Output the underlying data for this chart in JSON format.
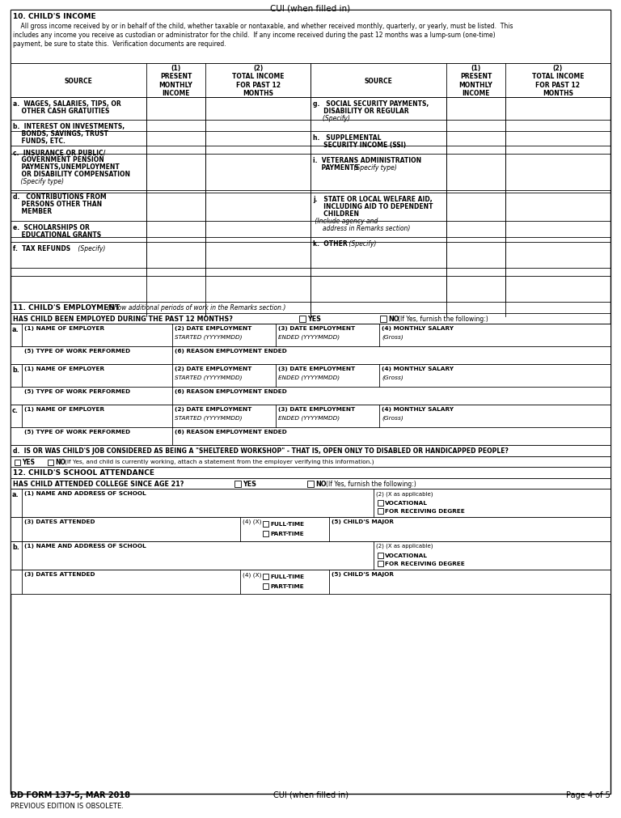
{
  "page_title": "CUI (when filled in)",
  "footer_form": "DD FORM 137-5, MAR 2018",
  "footer_center": "CUI (when filled in)",
  "footer_page": "Page 4 of 5",
  "footer_obsolete": "PREVIOUS EDITION IS OBSOLETE.",
  "background": "#ffffff",
  "section10_title": "10. CHILD’S INCOME",
  "section10_title_plain": "10. CHILD'S INCOME",
  "section10_desc1": "    All gross income received by or in behalf of the child, whether taxable or nontaxable, and whether received monthly, quarterly, or yearly, must be listed.  This",
  "section10_desc2": "includes any income you receive as custodian or administrator for the child.  If any income received during the past 12 months was a lump-sum (one-time)",
  "section10_desc3": "payment, be sure to state this.  Verification documents are required.",
  "income_rows_left": [
    {
      "bold": "a.  WAGES, SALARIES, TIPS, OR\n    OTHER CASH GRATUITIES",
      "italic": ""
    },
    {
      "bold": "b.  INTEREST ON INVESTMENTS,\n    BONDS, SAVINGS, TRUST\n    FUNDS, ETC.",
      "italic": ""
    },
    {
      "bold": "c.  INSURANCE OR PUBLIC/\n    GOVERNMENT PENSION\n    PAYMENTS,UNEMPLOYMENT\n    OR DISABILITY COMPENSATION",
      "italic": "    (Specify type)"
    },
    {
      "bold": "d.   CONTRIBUTIONS FROM\n    PERSONS OTHER THAN\n    MEMBER",
      "italic": ""
    },
    {
      "bold": "e.  SCHOLARSHIPS OR\n    EDUCATIONAL GRANTS",
      "italic": ""
    },
    {
      "bold": "f.  TAX REFUNDS",
      "italic": " (Specify)"
    }
  ],
  "income_rows_right": [
    {
      "bold": "g.   SOCIAL SECURITY PAYMENTS,\n     DISABILITY OR REGULAR",
      "italic": "     (Specify)"
    },
    {
      "bold": "h.   SUPPLEMENTAL\n     SECURITY INCOME (SSI)",
      "italic": ""
    },
    {
      "bold": "i.  VETERANS ADMINISTRATION\n    PAYMENTS",
      "italic": " (Specify type)"
    },
    {
      "bold": "j.   STATE OR LOCAL WELFARE AID,\n     INCLUDING AID TO DEPENDENT\n     CHILDREN",
      "italic": " (Include agency and\n     address in Remarks section)"
    },
    {
      "bold": "k.  OTHER",
      "italic": " (Specify)"
    },
    {
      "bold": "",
      "italic": ""
    }
  ],
  "section11_title": "11. CHILD'S EMPLOYMENT",
  "section11_italic": "  (Show additional periods of work in the Remarks section.)",
  "employment_q": "HAS CHILD BEEN EMPLOYED DURING THE PAST 12 MONTHS?",
  "employment_yes": "YES",
  "employment_no": "NO",
  "employment_no_note": "(If Yes, furnish the following:)",
  "emp_col1": "(1) NAME OF EMPLOYER",
  "emp_col2_bold": "(2) DATE EMPLOYMENT",
  "emp_col2_italic": "STARTED (YYYYMMDD)",
  "emp_col3_bold": "(3) DATE EMPLOYMENT",
  "emp_col3_italic": "ENDED (YYYYMMDD)",
  "emp_col4_bold": "(4) MONTHLY SALARY",
  "emp_col4_italic": "(Gross)",
  "emp_col5": "(5) TYPE OF WORK PERFORMED",
  "emp_col6": "(6) REASON EMPLOYMENT ENDED",
  "emp_labels": [
    "a.",
    "b.",
    "c."
  ],
  "sheltered_q": "d.  IS OR WAS CHILD'S JOB CONSIDERED AS BEING A \"SHELTERED WORKSHOP\" - THAT IS, OPEN ONLY TO DISABLED OR HANDICAPPED PEOPLE?",
  "sheltered_yes": "YES",
  "sheltered_no": "NO",
  "sheltered_note": "(If Yes, and child is currently working, attach a statement from the employer verifying this information.)",
  "section12_title": "12. CHILD'S SCHOOL ATTENDANCE",
  "school_q": "HAS CHILD ATTENDED COLLEGE SINCE AGE 21?",
  "school_yes": "YES",
  "school_no": "NO",
  "school_no_note": "(If Yes, furnish the following:)",
  "school_col1": "(1) NAME AND ADDRESS OF SCHOOL",
  "school_col2_title": "(2) (X as applicable)",
  "school_col2a": "VOCATIONAL",
  "school_col2b": "FOR RECEIVING DEGREE",
  "school_col3": "(3) DATES ATTENDED",
  "school_col4": "(4) (X)",
  "school_col4a": "FULL-TIME",
  "school_col4b": "PART-TIME",
  "school_col5": "(5) CHILD'S MAJOR",
  "school_labels": [
    "a.",
    "b."
  ]
}
